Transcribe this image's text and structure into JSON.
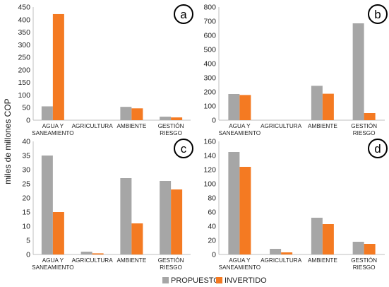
{
  "ylabel": "miles de millones COP",
  "legend": [
    {
      "name": "PROPUESTO",
      "color": "#a6a6a6"
    },
    {
      "name": "INVERTIDO",
      "color": "#f47a22"
    }
  ],
  "chart_data": [
    {
      "type": "bar",
      "panel_label": "a",
      "categories": [
        [
          "AGUA Y",
          "SANEAMIENTO"
        ],
        [
          "AGRICULTURA"
        ],
        [
          "AMBIENTE"
        ],
        [
          "GESTIÓN",
          "RIESGO"
        ]
      ],
      "series": [
        {
          "name": "PROPUESTO",
          "values": [
            55,
            0,
            53,
            14
          ]
        },
        {
          "name": "INVERTIDO",
          "values": [
            422,
            0,
            47,
            11
          ]
        }
      ],
      "ylim": [
        0,
        450
      ],
      "yticks": [
        0,
        50,
        100,
        150,
        200,
        250,
        300,
        350,
        400,
        450
      ]
    },
    {
      "type": "bar",
      "panel_label": "b",
      "categories": [
        [
          "AGUA Y",
          "SANEAMIENTO"
        ],
        [
          "AGRICULTURA"
        ],
        [
          "AMBIENTE"
        ],
        [
          "GESTIÓN",
          "RIESGO"
        ]
      ],
      "series": [
        {
          "name": "PROPUESTO",
          "values": [
            185,
            0,
            243,
            685
          ]
        },
        {
          "name": "INVERTIDO",
          "values": [
            178,
            0,
            187,
            50
          ]
        }
      ],
      "ylim": [
        0,
        800
      ],
      "yticks": [
        0,
        100,
        200,
        300,
        400,
        500,
        600,
        700,
        800
      ]
    },
    {
      "type": "bar",
      "panel_label": "c",
      "categories": [
        [
          "AGUA Y",
          "SANEAMIENTO"
        ],
        [
          "AGRICULTURA"
        ],
        [
          "AMBIENTE"
        ],
        [
          "GESTIÓN",
          "RIESGO"
        ]
      ],
      "series": [
        {
          "name": "PROPUESTO",
          "values": [
            35,
            1,
            27,
            26
          ]
        },
        {
          "name": "INVERTIDO",
          "values": [
            15,
            0.4,
            11,
            23
          ]
        }
      ],
      "ylim": [
        0,
        40
      ],
      "yticks": [
        0,
        5,
        10,
        15,
        20,
        25,
        30,
        35,
        40
      ]
    },
    {
      "type": "bar",
      "panel_label": "d",
      "categories": [
        [
          "AGUA Y",
          "SANEAMIENTO"
        ],
        [
          "AGRICULTURA"
        ],
        [
          "AMBIENTE"
        ],
        [
          "GESTIÓN",
          "RIESGO"
        ]
      ],
      "series": [
        {
          "name": "PROPUESTO",
          "values": [
            145,
            8,
            52,
            18
          ]
        },
        {
          "name": "INVERTIDO",
          "values": [
            124,
            3,
            43,
            15
          ]
        }
      ],
      "ylim": [
        0,
        160
      ],
      "yticks": [
        0,
        20,
        40,
        60,
        80,
        100,
        120,
        140,
        160
      ]
    }
  ]
}
